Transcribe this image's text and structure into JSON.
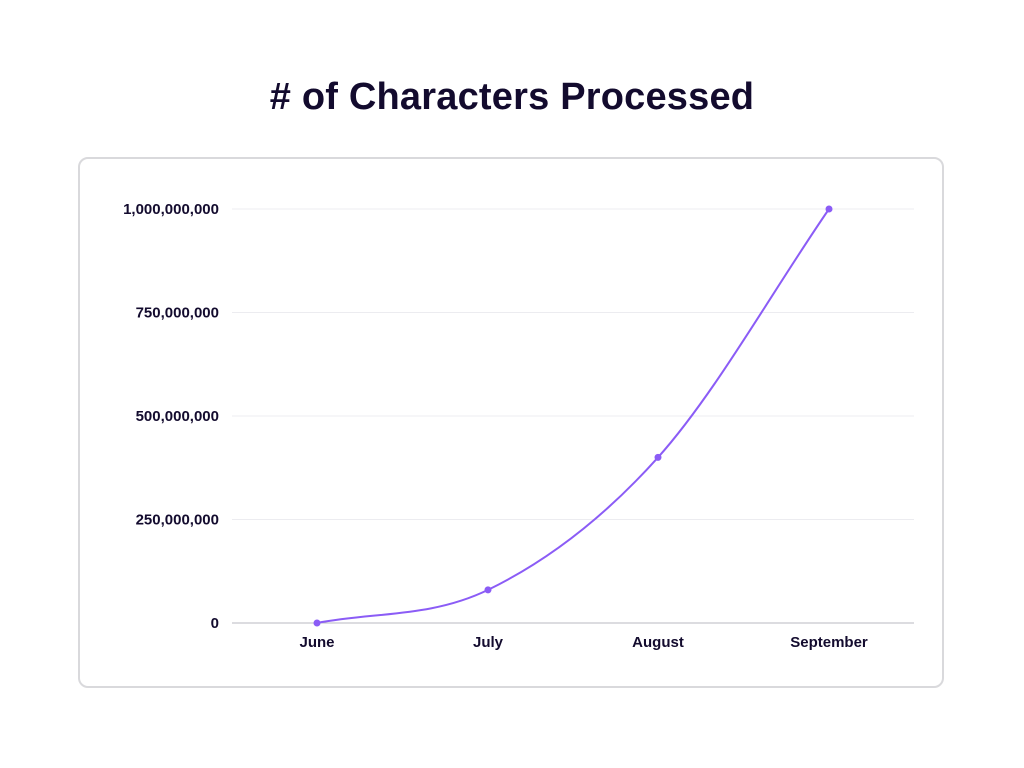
{
  "chart_data": {
    "type": "line",
    "title": "# of Characters Processed",
    "categories": [
      "June",
      "July",
      "August",
      "September"
    ],
    "series": [
      {
        "name": "# of Characters Processed",
        "values": [
          0,
          80000000,
          400000000,
          1000000000
        ]
      }
    ],
    "yticks": [
      0,
      250000000,
      500000000,
      750000000,
      1000000000
    ],
    "ytick_labels": [
      "0",
      "250,000,000",
      "500,000,000",
      "750,000,000",
      "1,000,000,000"
    ],
    "ylim": [
      0,
      1000000000
    ],
    "xlabel": "",
    "ylabel": "",
    "grid": true,
    "legend": "none",
    "colors": {
      "line": "#8b5cf6",
      "point": "#8b5cf6",
      "grid": "#ececf0",
      "axis": "#b8b8c0",
      "text": "#130b2e"
    }
  }
}
